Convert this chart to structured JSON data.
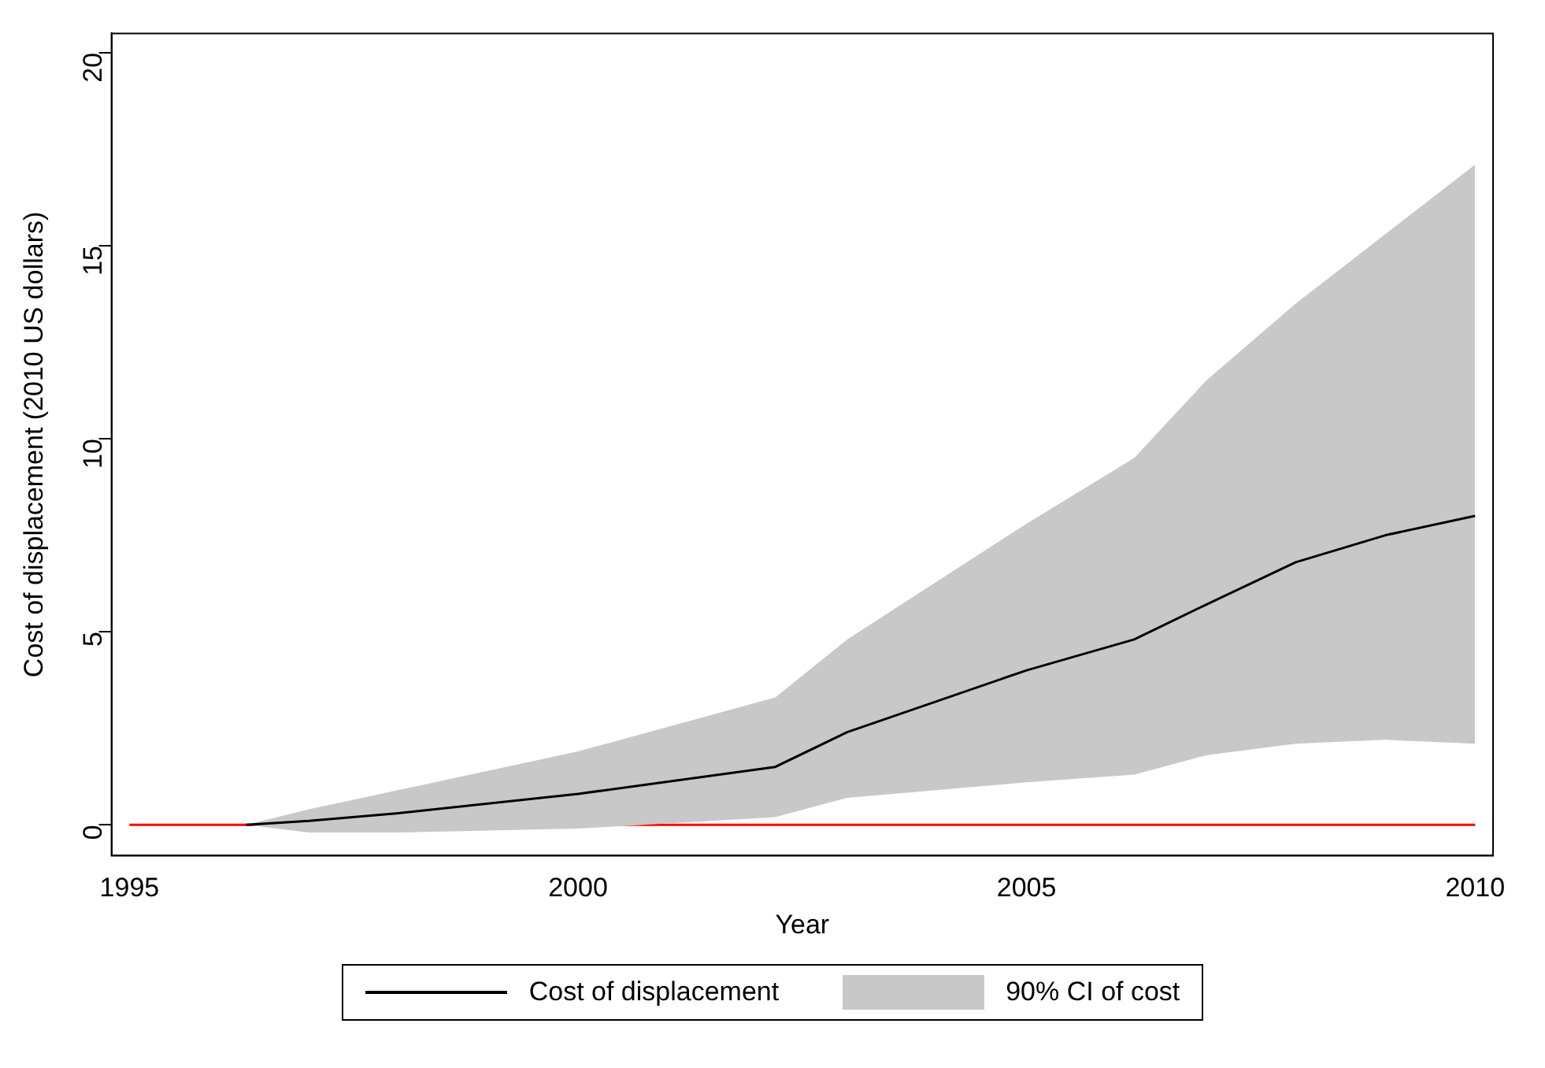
{
  "chart_data": {
    "type": "line",
    "xlabel": "Year",
    "ylabel": "Cost of displacement (2010 US dollars)",
    "x": [
      1996.3,
      1997,
      1998,
      2000,
      2002.2,
      2003,
      2005,
      2006.2,
      2007,
      2008,
      2009,
      2010
    ],
    "series": [
      {
        "name": "Cost of displacement",
        "color": "#000000",
        "values": [
          0,
          0.1,
          0.3,
          0.8,
          1.5,
          2.4,
          4.0,
          4.8,
          5.7,
          6.8,
          7.5,
          8.0
        ],
        "lower": [
          0,
          -0.2,
          -0.2,
          -0.1,
          0.2,
          0.7,
          1.1,
          1.3,
          1.8,
          2.1,
          2.2,
          2.1
        ],
        "upper": [
          0,
          0.4,
          0.9,
          1.9,
          3.3,
          4.8,
          7.8,
          9.5,
          11.5,
          13.5,
          15.3,
          17.1
        ]
      }
    ],
    "annotations": [
      "90% CI of cost"
    ],
    "ref_lines": [
      {
        "axis": "y",
        "value": 0,
        "color": "#ff0000"
      }
    ],
    "xlim": [
      1994.8,
      2010.2
    ],
    "xticks": [
      1995,
      2000,
      2005,
      2010
    ],
    "ylim": [
      -0.8,
      20.5
    ],
    "yticks": [
      0,
      5,
      10,
      15,
      20
    ],
    "grid": false,
    "legend": "bottom",
    "marker": "none",
    "line_style": "solid"
  }
}
